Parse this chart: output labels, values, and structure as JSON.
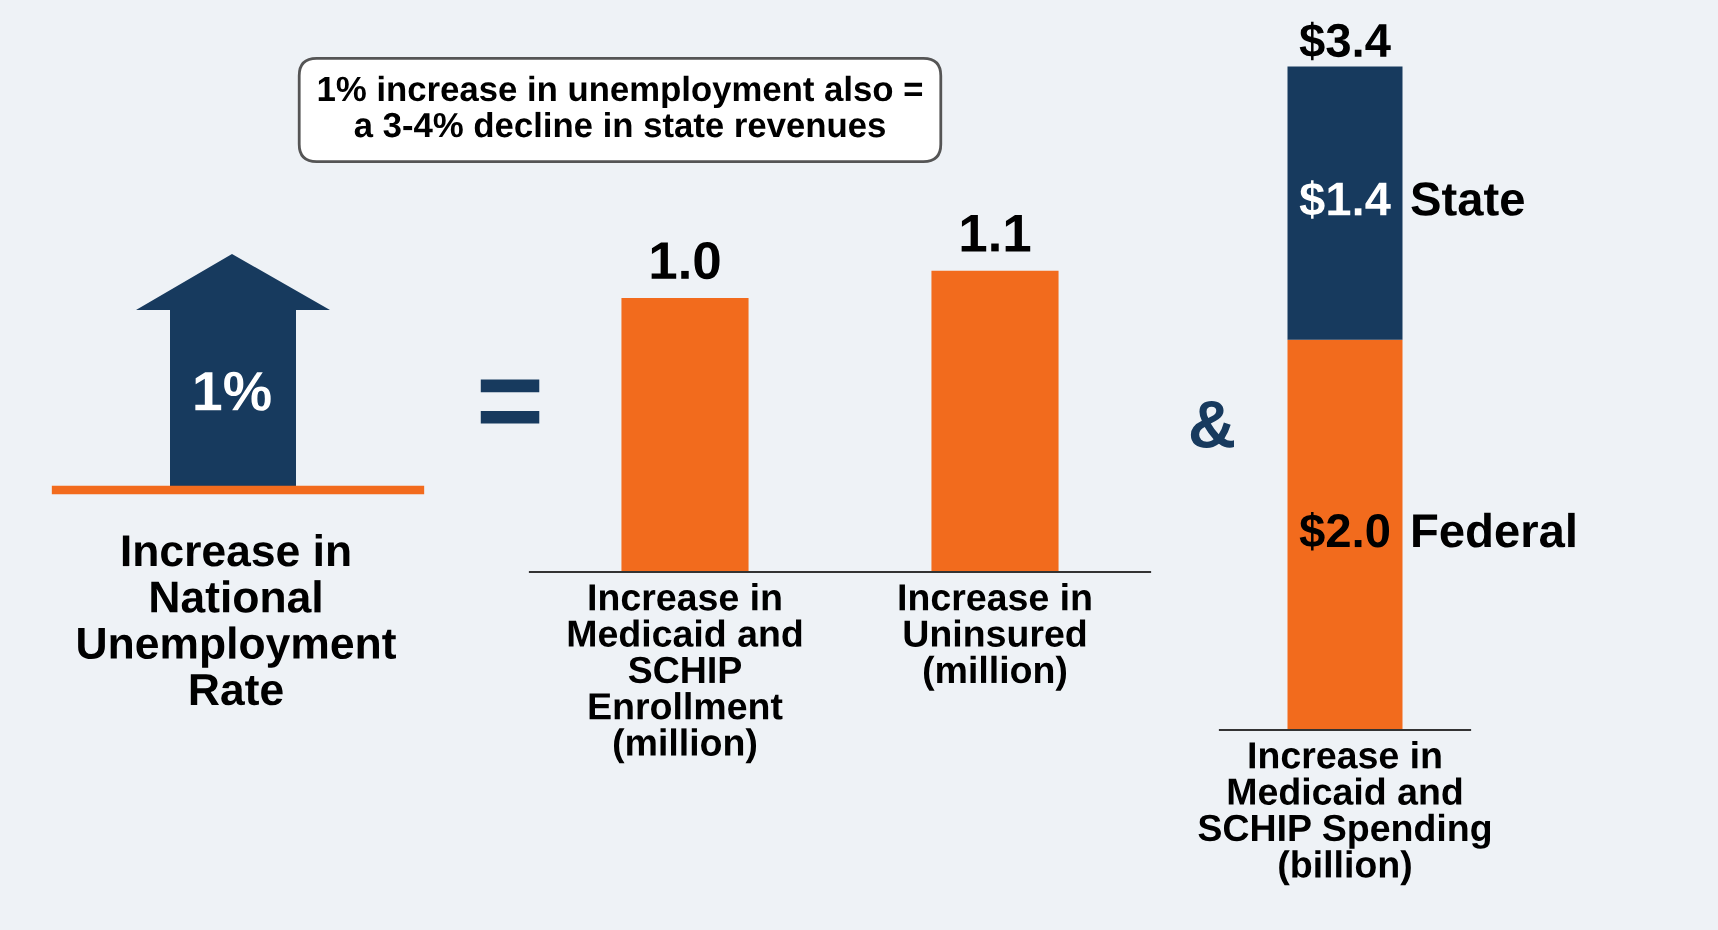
{
  "chart_data": [
    {
      "type": "other",
      "annotations": [
        "1% increase in unemployment also =\na 3-4% decline in state revenues",
        "1%",
        "Increase in\nNational\nUnemployment\nRate",
        "=",
        "&"
      ]
    },
    {
      "type": "bar",
      "categories": [
        "Increase in\nMedicaid and\nSCHIP\nEnrollment\n(million)",
        "Increase in\nUninsured\n(million)"
      ],
      "values": [
        1.0,
        1.1
      ],
      "color": "#f26b1d",
      "value_labels": [
        "1.0",
        "1.1"
      ]
    },
    {
      "type": "bar",
      "stacked": true,
      "categories": [
        "Increase in\nMedicaid and\nSCHIP Spending\n(billion)"
      ],
      "series": [
        {
          "name": "Federal",
          "color": "#f26b1d",
          "values": [
            2.0
          ],
          "value_labels": [
            "$2.0"
          ]
        },
        {
          "name": "State",
          "color": "#173a5e",
          "values": [
            1.4
          ],
          "value_labels": [
            "$1.4"
          ]
        }
      ],
      "totals": [
        "$3.4"
      ]
    }
  ]
}
